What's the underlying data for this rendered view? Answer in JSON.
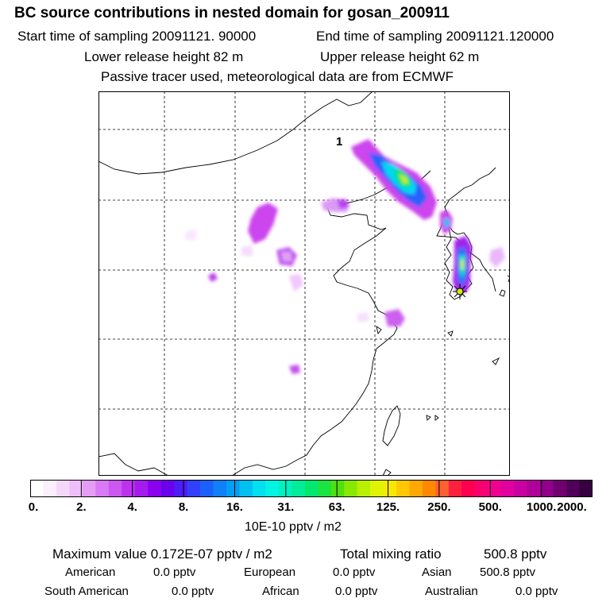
{
  "title": "BC  source contributions in nested domain for gosan_200911",
  "start_sampling": "Start time of sampling 20091121. 90000",
  "end_sampling": "End time of sampling 20091121.120000",
  "lower_release": "Lower release height   82 m",
  "upper_release": "Upper release height   62 m",
  "tracer_note": "Passive tracer used, meteorological data are from ECMWF",
  "map": {
    "label_1": "1",
    "receptor": "star-marker"
  },
  "colorbar": {
    "tick_labels": [
      "0.",
      "2.",
      "4.",
      "8.",
      "16.",
      "31.",
      "63.",
      "125.",
      "250.",
      "500.",
      "1000.",
      "2000."
    ],
    "colors": [
      "#ffffff",
      "#fbeefe",
      "#f5d7fc",
      "#eebefa",
      "#e49cf6",
      "#d77af3",
      "#cc58f0",
      "#bb33ee",
      "#a51bee",
      "#8a00ee",
      "#6b00ee",
      "#4d1cf6",
      "#3040fb",
      "#1c60fb",
      "#1080f8",
      "#00a0f4",
      "#00c0f0",
      "#00e0f0",
      "#00f4e4",
      "#00f0c0",
      "#00ec98",
      "#00e870",
      "#1ae440",
      "#50e010",
      "#88e800",
      "#b8f000",
      "#e0f400",
      "#f8e800",
      "#ffc800",
      "#ffa800",
      "#ff8800",
      "#ff6030",
      "#ff2040",
      "#ff0050",
      "#f80070",
      "#f00090",
      "#e000a0",
      "#c800a0",
      "#b00098",
      "#900088",
      "#700070",
      "#500058",
      "#380040"
    ],
    "units": "10E-10 pptv / m2"
  },
  "summary": {
    "maximum_value": "Maximum value  0.172E-07 pptv / m2",
    "total_label": "Total mixing ratio",
    "total_value": "500.8 pptv",
    "regions": [
      {
        "name": "American",
        "value": "0.0 pptv"
      },
      {
        "name": "European",
        "value": "0.0 pptv"
      },
      {
        "name": "Asian",
        "value": "500.8 pptv"
      },
      {
        "name": "South American",
        "value": "0.0 pptv"
      },
      {
        "name": "African",
        "value": "0.0 pptv"
      },
      {
        "name": "Australian",
        "value": "0.0 pptv"
      }
    ]
  }
}
